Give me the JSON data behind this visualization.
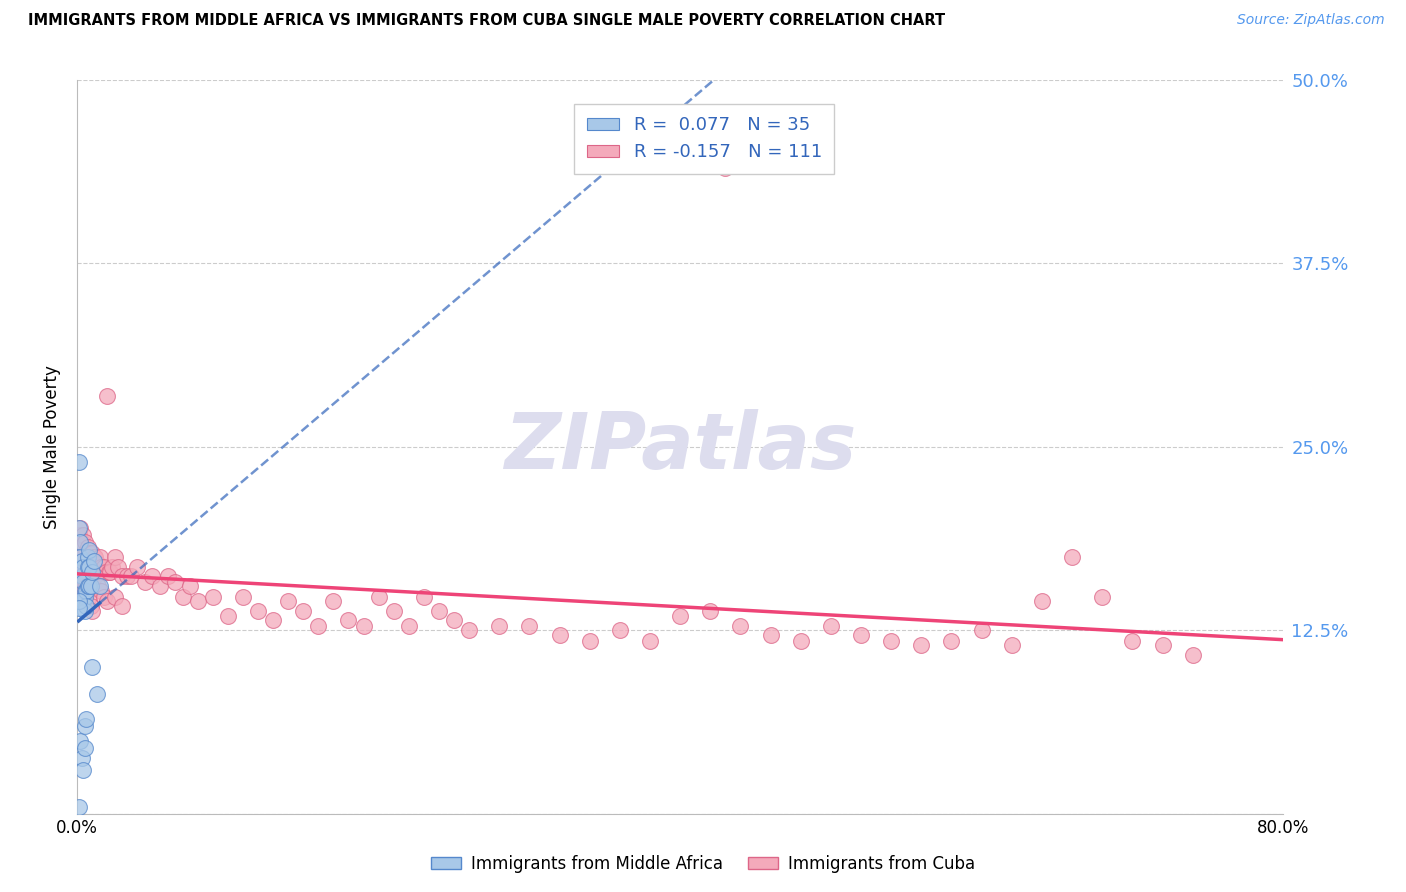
{
  "title": "IMMIGRANTS FROM MIDDLE AFRICA VS IMMIGRANTS FROM CUBA SINGLE MALE POVERTY CORRELATION CHART",
  "source": "Source: ZipAtlas.com",
  "ylabel": "Single Male Poverty",
  "x_min": 0.0,
  "x_max": 0.8,
  "y_min": 0.0,
  "y_max": 0.5,
  "y_ticks": [
    0.0,
    0.125,
    0.25,
    0.375,
    0.5
  ],
  "y_tick_labels": [
    "",
    "12.5%",
    "25.0%",
    "37.5%",
    "50.0%"
  ],
  "x_ticks": [
    0.0,
    0.2,
    0.4,
    0.6,
    0.8
  ],
  "x_tick_labels": [
    "0.0%",
    "",
    "",
    "",
    "80.0%"
  ],
  "legend_line1": "R =  0.077   N = 35",
  "legend_line2": "R = -0.157   N = 111",
  "label_blue": "Immigrants from Middle Africa",
  "label_pink": "Immigrants from Cuba",
  "color_blue_fill": "#A8C8E8",
  "color_blue_edge": "#5588CC",
  "color_pink_fill": "#F4AABB",
  "color_pink_edge": "#DD6688",
  "color_trend_blue": "#3366BB",
  "color_trend_pink": "#EE4477",
  "color_grid": "#CCCCCC",
  "color_axis": "#BBBBBB",
  "color_ytick_right": "#5599EE",
  "watermark_text": "ZIPatlas",
  "watermark_color": "#DDDDEE",
  "blue_x": [
    0.001,
    0.001,
    0.002,
    0.002,
    0.002,
    0.003,
    0.003,
    0.003,
    0.004,
    0.004,
    0.004,
    0.004,
    0.005,
    0.005,
    0.005,
    0.005,
    0.005,
    0.006,
    0.006,
    0.006,
    0.007,
    0.007,
    0.007,
    0.008,
    0.008,
    0.008,
    0.009,
    0.01,
    0.01,
    0.011,
    0.013,
    0.015,
    0.001,
    0.001,
    0.001
  ],
  "blue_y": [
    0.24,
    0.195,
    0.185,
    0.175,
    0.05,
    0.172,
    0.162,
    0.038,
    0.168,
    0.158,
    0.145,
    0.03,
    0.152,
    0.148,
    0.138,
    0.06,
    0.045,
    0.152,
    0.142,
    0.065,
    0.175,
    0.168,
    0.155,
    0.18,
    0.168,
    0.155,
    0.155,
    0.165,
    0.1,
    0.172,
    0.082,
    0.155,
    0.145,
    0.14,
    0.005
  ],
  "pink_x": [
    0.001,
    0.001,
    0.001,
    0.002,
    0.002,
    0.002,
    0.003,
    0.003,
    0.003,
    0.004,
    0.004,
    0.004,
    0.005,
    0.005,
    0.006,
    0.006,
    0.007,
    0.007,
    0.008,
    0.008,
    0.009,
    0.009,
    0.01,
    0.01,
    0.011,
    0.012,
    0.013,
    0.014,
    0.015,
    0.016,
    0.017,
    0.018,
    0.019,
    0.02,
    0.021,
    0.022,
    0.023,
    0.025,
    0.027,
    0.03,
    0.033,
    0.036,
    0.04,
    0.045,
    0.05,
    0.055,
    0.06,
    0.065,
    0.07,
    0.075,
    0.08,
    0.09,
    0.1,
    0.11,
    0.12,
    0.13,
    0.14,
    0.15,
    0.16,
    0.17,
    0.18,
    0.19,
    0.2,
    0.21,
    0.22,
    0.23,
    0.24,
    0.25,
    0.26,
    0.28,
    0.3,
    0.32,
    0.34,
    0.36,
    0.38,
    0.4,
    0.42,
    0.44,
    0.46,
    0.48,
    0.5,
    0.52,
    0.54,
    0.56,
    0.58,
    0.6,
    0.62,
    0.64,
    0.66,
    0.68,
    0.7,
    0.72,
    0.74,
    0.001,
    0.002,
    0.003,
    0.004,
    0.005,
    0.006,
    0.007,
    0.008,
    0.009,
    0.01,
    0.012,
    0.014,
    0.016,
    0.018,
    0.02,
    0.025,
    0.03,
    0.43
  ],
  "pink_y": [
    0.19,
    0.175,
    0.16,
    0.195,
    0.175,
    0.155,
    0.185,
    0.17,
    0.15,
    0.19,
    0.172,
    0.152,
    0.185,
    0.162,
    0.178,
    0.158,
    0.182,
    0.162,
    0.178,
    0.158,
    0.172,
    0.155,
    0.178,
    0.158,
    0.175,
    0.175,
    0.165,
    0.17,
    0.175,
    0.168,
    0.165,
    0.168,
    0.165,
    0.285,
    0.165,
    0.165,
    0.168,
    0.175,
    0.168,
    0.162,
    0.162,
    0.162,
    0.168,
    0.158,
    0.162,
    0.155,
    0.162,
    0.158,
    0.148,
    0.155,
    0.145,
    0.148,
    0.135,
    0.148,
    0.138,
    0.132,
    0.145,
    0.138,
    0.128,
    0.145,
    0.132,
    0.128,
    0.148,
    0.138,
    0.128,
    0.148,
    0.138,
    0.132,
    0.125,
    0.128,
    0.128,
    0.122,
    0.118,
    0.125,
    0.118,
    0.135,
    0.138,
    0.128,
    0.122,
    0.118,
    0.128,
    0.122,
    0.118,
    0.115,
    0.118,
    0.125,
    0.115,
    0.145,
    0.175,
    0.148,
    0.118,
    0.115,
    0.108,
    0.175,
    0.168,
    0.165,
    0.162,
    0.158,
    0.155,
    0.152,
    0.148,
    0.142,
    0.138,
    0.162,
    0.155,
    0.152,
    0.148,
    0.145,
    0.148,
    0.142,
    0.44
  ]
}
